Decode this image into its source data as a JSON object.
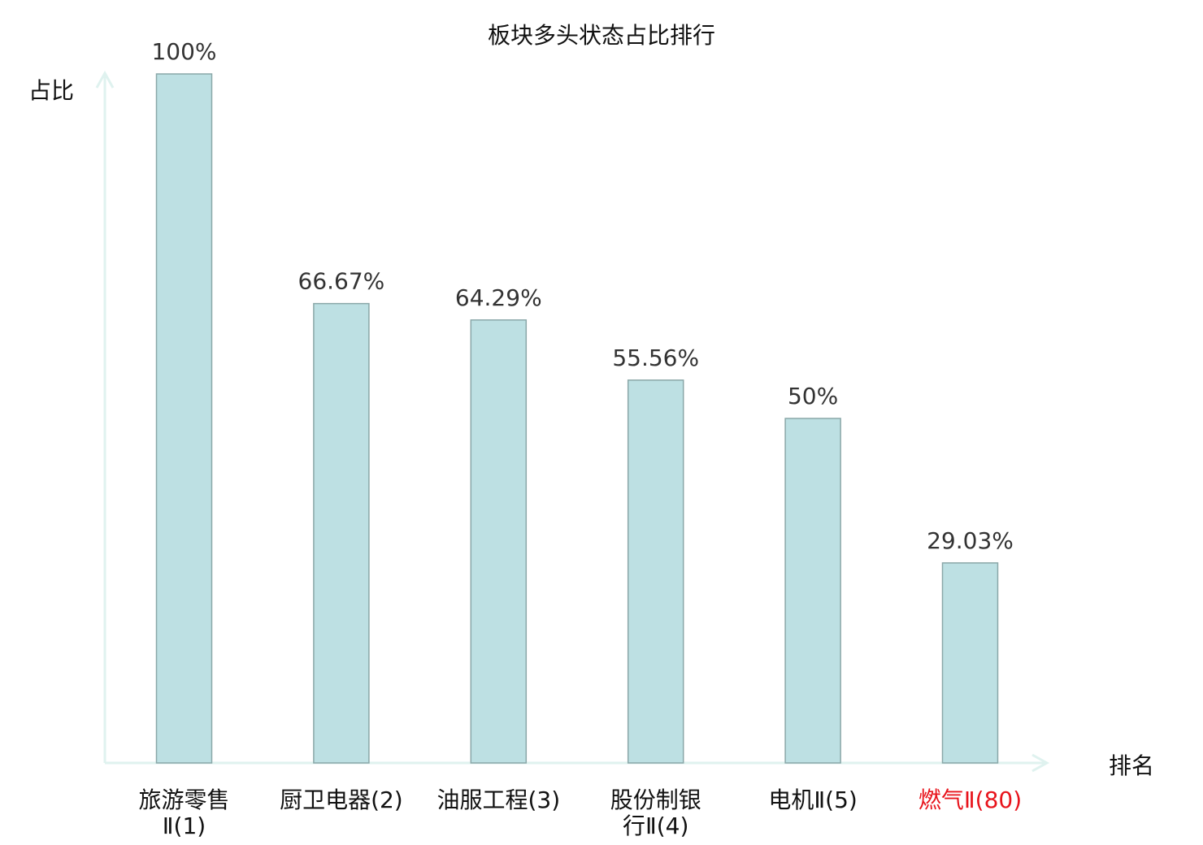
{
  "chart_data": {
    "type": "bar",
    "title": "板块多头状态占比排行",
    "xlabel": "排名",
    "ylabel": "占比",
    "ylim": [
      0,
      100
    ],
    "grid": false,
    "categories": [
      {
        "lines": [
          "旅游零售",
          "Ⅱ(1)"
        ],
        "highlight": false
      },
      {
        "lines": [
          "厨卫电器(2)"
        ],
        "highlight": false
      },
      {
        "lines": [
          "油服工程(3)"
        ],
        "highlight": false
      },
      {
        "lines": [
          "股份制银",
          "行Ⅱ(4)"
        ],
        "highlight": false
      },
      {
        "lines": [
          "电机Ⅱ(5)"
        ],
        "highlight": false
      },
      {
        "lines": [
          "燃气Ⅱ(80)"
        ],
        "highlight": true
      }
    ],
    "values": [
      100,
      66.67,
      64.29,
      55.56,
      50,
      29.03
    ],
    "value_labels": [
      "100%",
      "66.67%",
      "64.29%",
      "55.56%",
      "50%",
      "29.03%"
    ],
    "colors": {
      "bar_fill": "#bde0e3",
      "bar_stroke": "#8aa7a8",
      "axis": "#dff2ef",
      "label": "#111111",
      "value_label": "#333333",
      "highlight": "#e8141c"
    }
  }
}
